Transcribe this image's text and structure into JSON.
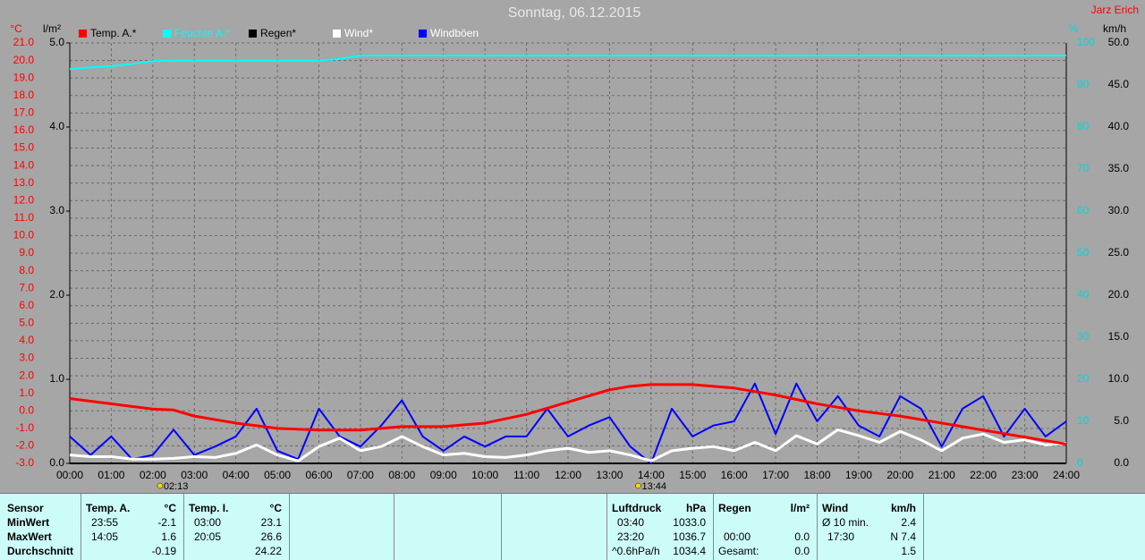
{
  "chart_data": {
    "type": "line",
    "title": "Sonntag, 06.12.2015",
    "author": "Jarz Erich",
    "x": [
      0,
      0.5,
      1,
      1.5,
      2,
      2.5,
      3,
      3.5,
      4,
      4.5,
      5,
      5.5,
      6,
      6.5,
      7,
      7.5,
      8,
      8.5,
      9,
      9.5,
      10,
      10.5,
      11,
      11.5,
      12,
      12.5,
      13,
      13.5,
      14,
      14.5,
      15,
      15.5,
      16,
      16.5,
      17,
      17.5,
      18,
      18.5,
      19,
      19.5,
      20,
      20.5,
      21,
      21.5,
      22,
      22.5,
      23,
      23.5,
      24
    ],
    "xlim": [
      0,
      24
    ],
    "xticks": [
      {
        "value": 0,
        "label": "00:00"
      },
      {
        "value": 1,
        "label": "01:00"
      },
      {
        "value": 2,
        "label": "02:00"
      },
      {
        "value": 3,
        "label": "03:00"
      },
      {
        "value": 4,
        "label": "04:00"
      },
      {
        "value": 5,
        "label": "05:00"
      },
      {
        "value": 6,
        "label": "06:00"
      },
      {
        "value": 7,
        "label": "07:00"
      },
      {
        "value": 8,
        "label": "08:00"
      },
      {
        "value": 9,
        "label": "09:00"
      },
      {
        "value": 10,
        "label": "10:00"
      },
      {
        "value": 11,
        "label": "11:00"
      },
      {
        "value": 12,
        "label": "12:00"
      },
      {
        "value": 13,
        "label": "13:00"
      },
      {
        "value": 14,
        "label": "14:00"
      },
      {
        "value": 15,
        "label": "15:00"
      },
      {
        "value": 16,
        "label": "16:00"
      },
      {
        "value": 17,
        "label": "17:00"
      },
      {
        "value": 18,
        "label": "18:00"
      },
      {
        "value": 19,
        "label": "19:00"
      },
      {
        "value": 20,
        "label": "20:00"
      },
      {
        "value": 21,
        "label": "21:00"
      },
      {
        "value": 22,
        "label": "22:00"
      },
      {
        "value": 23,
        "label": "23:00"
      },
      {
        "value": 24,
        "label": "24:00"
      }
    ],
    "grid": true,
    "axes": {
      "temp": {
        "unit": "°C",
        "color": "#ff0000",
        "lim": [
          -3,
          21
        ],
        "ticks": [
          {
            "value": -3,
            "label": "-3.0"
          },
          {
            "value": -2,
            "label": "-2.0"
          },
          {
            "value": -1,
            "label": "-1.0"
          },
          {
            "value": 0,
            "label": "0.0"
          },
          {
            "value": 1,
            "label": "1.0"
          },
          {
            "value": 2,
            "label": "2.0"
          },
          {
            "value": 3,
            "label": "3.0"
          },
          {
            "value": 4,
            "label": "4.0"
          },
          {
            "value": 5,
            "label": "5.0"
          },
          {
            "value": 6,
            "label": "6.0"
          },
          {
            "value": 7,
            "label": "7.0"
          },
          {
            "value": 8,
            "label": "8.0"
          },
          {
            "value": 9,
            "label": "9.0"
          },
          {
            "value": 10,
            "label": "10.0"
          },
          {
            "value": 11,
            "label": "11.0"
          },
          {
            "value": 12,
            "label": "12.0"
          },
          {
            "value": 13,
            "label": "13.0"
          },
          {
            "value": 14,
            "label": "14.0"
          },
          {
            "value": 15,
            "label": "15.0"
          },
          {
            "value": 16,
            "label": "16.0"
          },
          {
            "value": 17,
            "label": "17.0"
          },
          {
            "value": 18,
            "label": "18.0"
          },
          {
            "value": 19,
            "label": "19.0"
          },
          {
            "value": 20,
            "label": "20.0"
          },
          {
            "value": 21,
            "label": "21.0"
          }
        ]
      },
      "rain": {
        "unit": "l/m²",
        "color": "#000000",
        "lim": [
          0,
          5
        ],
        "ticks": [
          {
            "value": 0,
            "label": "0.0"
          },
          {
            "value": 1,
            "label": "1.0"
          },
          {
            "value": 2,
            "label": "2.0"
          },
          {
            "value": 3,
            "label": "3.0"
          },
          {
            "value": 4,
            "label": "4.0"
          },
          {
            "value": 5,
            "label": "5.0"
          }
        ]
      },
      "humidity": {
        "unit": "%",
        "color": "#00d8d8",
        "lim": [
          0,
          100
        ],
        "ticks": [
          0,
          10,
          20,
          30,
          40,
          50,
          60,
          70,
          80,
          90,
          100
        ]
      },
      "wind": {
        "unit": "km/h",
        "color": "#000000",
        "lim": [
          0,
          50
        ],
        "ticks": [
          {
            "value": 0,
            "label": "0.0"
          },
          {
            "value": 5,
            "label": "5.0"
          },
          {
            "value": 10,
            "label": "10.0"
          },
          {
            "value": 15,
            "label": "15.0"
          },
          {
            "value": 20,
            "label": "20.0"
          },
          {
            "value": 25,
            "label": "25.0"
          },
          {
            "value": 30,
            "label": "30.0"
          },
          {
            "value": 35,
            "label": "35.0"
          },
          {
            "value": 40,
            "label": "40.0"
          },
          {
            "value": 45,
            "label": "45.0"
          },
          {
            "value": 50,
            "label": "50.0"
          }
        ]
      }
    },
    "series": [
      {
        "name": "Temp. A.*",
        "color": "#ff0000",
        "axis": "temp",
        "values": [
          0.7,
          0.55,
          0.4,
          0.25,
          0.1,
          0.05,
          -0.3,
          -0.5,
          -0.7,
          -0.85,
          -1.0,
          -1.05,
          -1.1,
          -1.1,
          -1.1,
          -1.0,
          -0.9,
          -0.9,
          -0.9,
          -0.8,
          -0.7,
          -0.45,
          -0.2,
          0.15,
          0.5,
          0.85,
          1.2,
          1.4,
          1.5,
          1.5,
          1.5,
          1.4,
          1.3,
          1.1,
          0.9,
          0.65,
          0.4,
          0.2,
          0.0,
          -0.15,
          -0.3,
          -0.5,
          -0.7,
          -0.9,
          -1.1,
          -1.3,
          -1.5,
          -1.7,
          -1.9
        ]
      },
      {
        "name": "Feuchte A.*",
        "color": "#00ffff",
        "axis": "humidity",
        "values": [
          93.8,
          94.2,
          94.5,
          95.0,
          95.7,
          95.8,
          95.8,
          95.8,
          95.8,
          95.8,
          95.8,
          95.8,
          95.8,
          96.2,
          97,
          97,
          97,
          97,
          97,
          97,
          97,
          97,
          97,
          97,
          97,
          97,
          97,
          97,
          97,
          97,
          97,
          97,
          97,
          97,
          97,
          97,
          97,
          97,
          97,
          97,
          97,
          97,
          97,
          97,
          97,
          97,
          97,
          97,
          97
        ]
      },
      {
        "name": "Regen*",
        "color": "#000000",
        "axis": "rain",
        "values": [
          0,
          0,
          0,
          0,
          0,
          0,
          0,
          0,
          0,
          0,
          0,
          0,
          0,
          0,
          0,
          0,
          0,
          0,
          0,
          0,
          0,
          0,
          0,
          0,
          0,
          0,
          0,
          0,
          0,
          0,
          0,
          0,
          0,
          0,
          0,
          0,
          0,
          0,
          0,
          0,
          0,
          0,
          0,
          0,
          0,
          0,
          0,
          0,
          0
        ]
      },
      {
        "name": "Wind*",
        "color": "#ffffff",
        "axis": "wind",
        "values": [
          1.0,
          0.8,
          0.8,
          0.5,
          0.5,
          0.6,
          0.8,
          0.7,
          1.2,
          2.2,
          1.0,
          0.3,
          2.0,
          3.0,
          1.5,
          2.0,
          3.2,
          2.0,
          1.0,
          1.2,
          0.8,
          0.7,
          1.0,
          1.5,
          1.8,
          1.3,
          1.5,
          1.0,
          0.3,
          1.5,
          1.8,
          2.0,
          1.5,
          2.5,
          1.5,
          3.3,
          2.3,
          4.0,
          3.3,
          2.5,
          3.8,
          2.8,
          1.5,
          3.0,
          3.5,
          2.5,
          2.8,
          2.2,
          2.4
        ]
      },
      {
        "name": "Windböen",
        "color": "#0000ff",
        "axis": "wind",
        "values": [
          3.2,
          1.0,
          3.2,
          0.5,
          1.0,
          4.0,
          1.0,
          2.0,
          3.2,
          6.5,
          1.5,
          0.5,
          6.5,
          3.2,
          2.0,
          4.5,
          7.5,
          3.2,
          1.5,
          3.2,
          2.0,
          3.2,
          3.2,
          6.5,
          3.2,
          4.5,
          5.5,
          2.0,
          0.0,
          6.5,
          3.2,
          4.5,
          5.0,
          9.5,
          3.5,
          9.5,
          5.0,
          8.0,
          4.5,
          3.2,
          8.0,
          6.5,
          2.0,
          6.5,
          8.0,
          3.2,
          6.5,
          3.2,
          5.0
        ]
      }
    ],
    "annotations": [
      {
        "x": 2.2167,
        "label": "02:13"
      },
      {
        "x": 13.7333,
        "label": "13:44"
      }
    ]
  },
  "panel": {
    "sensor_header": "Sensor",
    "row_labels": [
      "MinWert",
      "MaxWert",
      "Durchschnitt"
    ],
    "columns": [
      {
        "header": "Temp. A.",
        "unit": "°C",
        "rows": [
          {
            "time": "23:55",
            "value": "-2.1"
          },
          {
            "time": "14:05",
            "value": "1.6"
          },
          {
            "value": "-0.19"
          }
        ]
      },
      {
        "header": "Temp. I.",
        "unit": "°C",
        "rows": [
          {
            "time": "03:00",
            "value": "23.1"
          },
          {
            "time": "20:05",
            "value": "26.6"
          },
          {
            "value": "24.22"
          }
        ]
      },
      {
        "header": "Luftdruck",
        "unit": "hPa",
        "rows": [
          {
            "time": "03:40",
            "value": "1033.0"
          },
          {
            "time": "23:20",
            "value": "1036.7"
          },
          {
            "time": "^0.6hPa/h",
            "value": "1034.4"
          }
        ]
      },
      {
        "header": "Regen",
        "unit": "l/m²",
        "rows": [
          null,
          {
            "time": "00:00",
            "value": "0.0"
          },
          {
            "time": "Gesamt:",
            "value": "0.0"
          }
        ]
      },
      {
        "header": "Wind",
        "unit": "km/h",
        "rows": [
          {
            "time": "Ø 10 min.",
            "value": "2.4"
          },
          {
            "time": "17:30",
            "value": "N 7.4"
          },
          {
            "value": "1.5"
          }
        ]
      }
    ]
  }
}
